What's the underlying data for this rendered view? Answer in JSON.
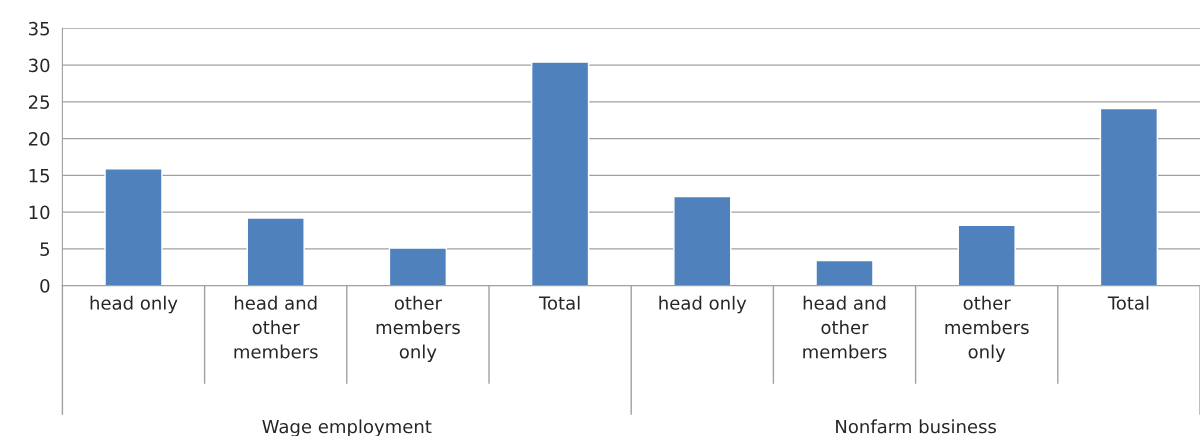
{
  "chart_data": {
    "type": "bar",
    "categories": [
      "head only",
      "head and\nother\nmembers",
      "other\nmembers\nonly",
      "Total",
      "head only",
      "head and\nother\nmembers",
      "other\nmembers\nonly",
      "Total"
    ],
    "values": [
      15.9,
      9.2,
      5.1,
      30.4,
      12.1,
      3.4,
      8.2,
      24.1
    ],
    "color": "#4f81bd",
    "ylim": [
      0,
      35
    ],
    "yticks": [
      0,
      5,
      10,
      15,
      20,
      25,
      30,
      35
    ],
    "grid": "y",
    "annotations": [
      "Wage employment",
      "Nonfarm business"
    ]
  }
}
